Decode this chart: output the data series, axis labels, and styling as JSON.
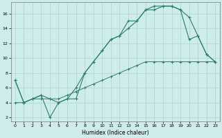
{
  "xlabel": "Humidex (Indice chaleur)",
  "bg_color": "#ceecea",
  "line_color": "#2e7d6e",
  "xlim": [
    -0.5,
    23.5
  ],
  "ylim": [
    1.5,
    17.5
  ],
  "xticks": [
    0,
    1,
    2,
    3,
    4,
    5,
    6,
    7,
    8,
    9,
    10,
    11,
    12,
    13,
    14,
    15,
    16,
    17,
    18,
    19,
    20,
    21,
    22,
    23
  ],
  "yticks": [
    2,
    4,
    6,
    8,
    10,
    12,
    14,
    16
  ],
  "grid_color": "#aed4d0",
  "line1_x": [
    0,
    1,
    2,
    3,
    4,
    5,
    6,
    7,
    8,
    9,
    10,
    11,
    12,
    13,
    14,
    15,
    16,
    17,
    18,
    19,
    20,
    21,
    22,
    23
  ],
  "line1_y": [
    7,
    4,
    4.5,
    5,
    4.5,
    4,
    4.5,
    4.5,
    8,
    9.5,
    11,
    12.5,
    13,
    15,
    15,
    16.5,
    17,
    17,
    17,
    16.5,
    15.5,
    13,
    10.5,
    9.5
  ],
  "line2_x": [
    0,
    1,
    2,
    3,
    4,
    5,
    6,
    7,
    8,
    9,
    10,
    11,
    12,
    13,
    14,
    15,
    16,
    17,
    18,
    19,
    20,
    21,
    22,
    23
  ],
  "line2_y": [
    7,
    4,
    4.5,
    5,
    2,
    4,
    4.5,
    6,
    8,
    9.5,
    11,
    12.5,
    13,
    14,
    15,
    16.5,
    16.5,
    17,
    17,
    16.5,
    12.5,
    13,
    10.5,
    9.5
  ],
  "line3_x": [
    0,
    1,
    2,
    3,
    4,
    5,
    6,
    7,
    8,
    9,
    10,
    11,
    12,
    13,
    14,
    15,
    16,
    17,
    18,
    19,
    20,
    21,
    22,
    23
  ],
  "line3_y": [
    4,
    4,
    4.5,
    4.5,
    4.5,
    4.5,
    5,
    5.5,
    6,
    6.5,
    7,
    7.5,
    8,
    8.5,
    9,
    9.5,
    9.5,
    9.5,
    9.5,
    9.5,
    9.5,
    9.5,
    9.5,
    9.5
  ]
}
